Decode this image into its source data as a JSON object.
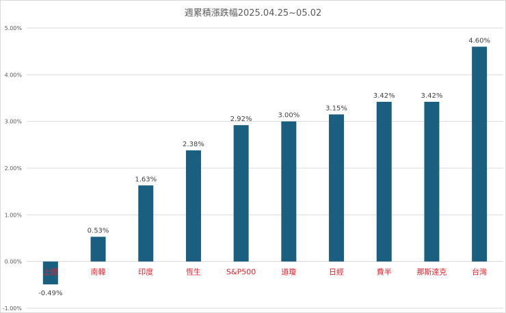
{
  "chart_data": {
    "type": "bar",
    "title": "週累積漲跌幅2025.04.25~05.02",
    "categories": [
      "上證",
      "南韓",
      "印度",
      "恆生",
      "S&P500",
      "道瓊",
      "日經",
      "費半",
      "那斯達克",
      "台灣"
    ],
    "values": [
      -0.49,
      0.53,
      1.63,
      2.38,
      2.92,
      3.0,
      3.15,
      3.42,
      3.42,
      4.6
    ],
    "value_labels": [
      "-0.49%",
      "0.53%",
      "1.63%",
      "2.38%",
      "2.92%",
      "3.00%",
      "3.15%",
      "3.42%",
      "3.42%",
      "4.60%"
    ],
    "yticks": [
      5,
      4,
      3,
      2,
      1,
      0,
      -1
    ],
    "ytick_labels": [
      "5.00%",
      "4.00%",
      "3.00%",
      "2.00%",
      "1.00%",
      "0.00%",
      "-1.00%"
    ],
    "ylim": [
      -1,
      5
    ],
    "xlabel": "",
    "ylabel": "",
    "grid": true,
    "bar_color": "#1a5e80",
    "category_label_color": "#e8202a"
  }
}
